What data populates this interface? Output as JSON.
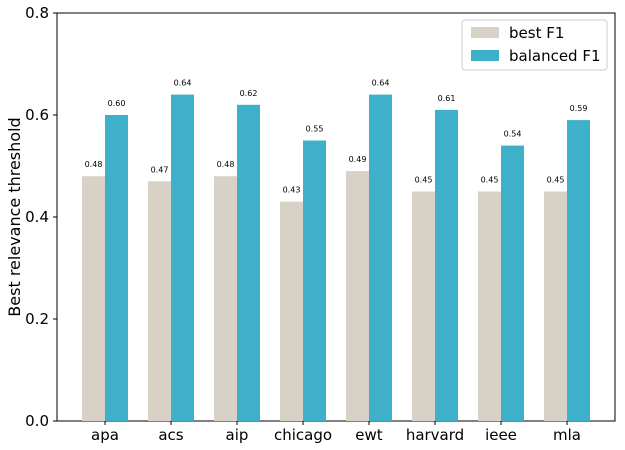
{
  "chart_data": {
    "type": "bar",
    "title": "",
    "xlabel": "",
    "ylabel": "Best relevance threshold",
    "categories": [
      "apa",
      "acs",
      "aip",
      "chicago",
      "ewt",
      "harvard",
      "ieee",
      "mla"
    ],
    "series": [
      {
        "name": "best F1",
        "color": "#d8d1c5",
        "values": [
          0.48,
          0.47,
          0.48,
          0.43,
          0.49,
          0.45,
          0.45,
          0.45
        ],
        "labels": [
          "0.48",
          "0.47",
          "0.48",
          "0.43",
          "0.49",
          "0.45",
          "0.45",
          "0.45"
        ]
      },
      {
        "name": "balanced F1",
        "color": "#3fb0c9",
        "values": [
          0.6,
          0.64,
          0.62,
          0.55,
          0.64,
          0.61,
          0.54,
          0.59
        ],
        "labels": [
          "0.60",
          "0.64",
          "0.62",
          "0.55",
          "0.64",
          "0.61",
          "0.54",
          "0.59"
        ]
      }
    ],
    "ylim": [
      0,
      0.8
    ],
    "yticks": [
      0.0,
      0.2,
      0.4,
      0.6,
      0.8
    ],
    "ytick_labels": [
      "0.0",
      "0.2",
      "0.4",
      "0.6",
      "0.8"
    ],
    "grid": false,
    "legend_position": "top-right"
  }
}
